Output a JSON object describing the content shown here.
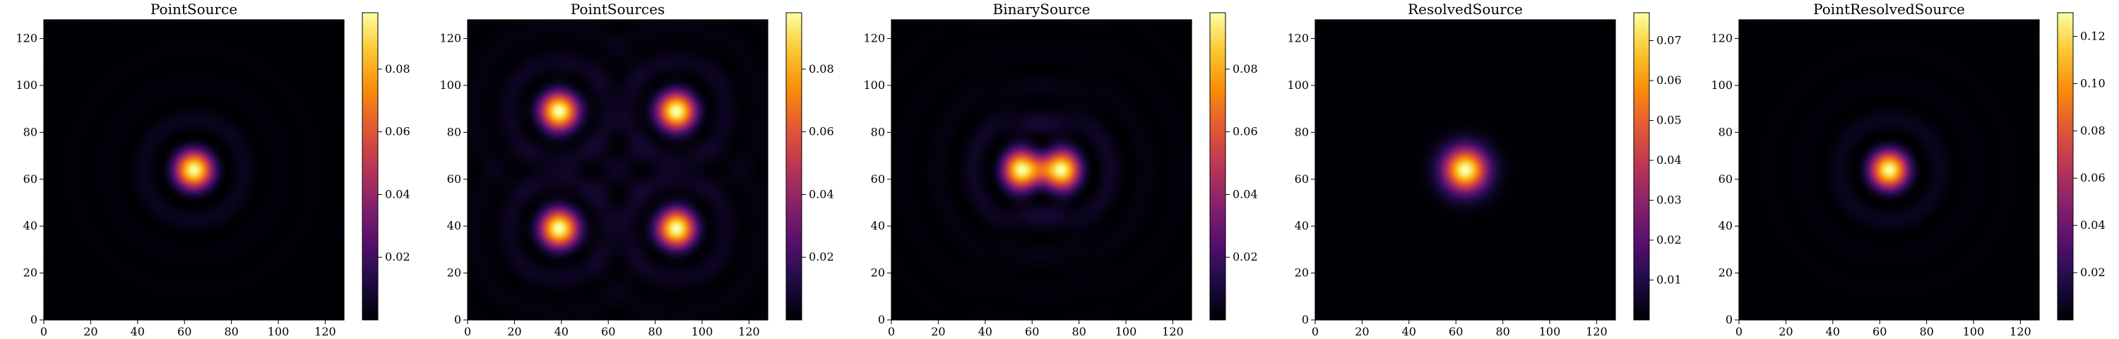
{
  "chart_data": [
    {
      "type": "heatmap",
      "title": "PointSource",
      "colormap": "inferno",
      "x_range": [
        0,
        128
      ],
      "y_range": [
        0,
        128
      ],
      "x_ticks": [
        "0",
        "20",
        "40",
        "60",
        "80",
        "100",
        "120"
      ],
      "y_ticks": [
        "0",
        "20",
        "40",
        "60",
        "80",
        "100",
        "120"
      ],
      "colorbar_range": [
        0,
        0.098
      ],
      "colorbar_ticks": [
        "0.02",
        "0.04",
        "0.06",
        "0.08"
      ],
      "sources": [
        {
          "x": 64,
          "y": 64,
          "amplitude": 1.0
        }
      ],
      "profile": "airy",
      "peak": 0.098
    },
    {
      "type": "heatmap",
      "title": "PointSources",
      "colormap": "inferno",
      "x_range": [
        0,
        128
      ],
      "y_range": [
        0,
        128
      ],
      "x_ticks": [
        "0",
        "20",
        "40",
        "60",
        "80",
        "100",
        "120"
      ],
      "y_ticks": [
        "0",
        "20",
        "40",
        "60",
        "80",
        "100",
        "120"
      ],
      "colorbar_range": [
        0,
        0.098
      ],
      "colorbar_ticks": [
        "0.02",
        "0.04",
        "0.06",
        "0.08"
      ],
      "sources": [
        {
          "x": 39,
          "y": 89,
          "amplitude": 1.0
        },
        {
          "x": 89,
          "y": 89,
          "amplitude": 1.0
        },
        {
          "x": 39,
          "y": 39,
          "amplitude": 1.0
        },
        {
          "x": 89,
          "y": 39,
          "amplitude": 1.0
        }
      ],
      "profile": "airy",
      "peak": 0.098
    },
    {
      "type": "heatmap",
      "title": "BinarySource",
      "colormap": "inferno",
      "x_range": [
        0,
        128
      ],
      "y_range": [
        0,
        128
      ],
      "x_ticks": [
        "0",
        "20",
        "40",
        "60",
        "80",
        "100",
        "120"
      ],
      "y_ticks": [
        "0",
        "20",
        "40",
        "60",
        "80",
        "100",
        "120"
      ],
      "colorbar_range": [
        0,
        0.098
      ],
      "colorbar_ticks": [
        "0.02",
        "0.04",
        "0.06",
        "0.08"
      ],
      "sources": [
        {
          "x": 56,
          "y": 64,
          "amplitude": 1.0
        },
        {
          "x": 72,
          "y": 64,
          "amplitude": 1.0
        }
      ],
      "profile": "airy",
      "peak": 0.098
    },
    {
      "type": "heatmap",
      "title": "ResolvedSource",
      "colormap": "inferno",
      "x_range": [
        0,
        128
      ],
      "y_range": [
        0,
        128
      ],
      "x_ticks": [
        "0",
        "20",
        "40",
        "60",
        "80",
        "100",
        "120"
      ],
      "y_ticks": [
        "0",
        "20",
        "40",
        "60",
        "80",
        "100",
        "120"
      ],
      "colorbar_range": [
        0,
        0.077
      ],
      "colorbar_ticks": [
        "0.01",
        "0.02",
        "0.03",
        "0.04",
        "0.05",
        "0.06",
        "0.07"
      ],
      "sources": [
        {
          "x": 64,
          "y": 64,
          "amplitude": 1.0
        }
      ],
      "profile": "blurred",
      "peak": 0.077
    },
    {
      "type": "heatmap",
      "title": "PointResolvedSource",
      "colormap": "inferno",
      "x_range": [
        0,
        128
      ],
      "y_range": [
        0,
        128
      ],
      "x_ticks": [
        "0",
        "20",
        "40",
        "60",
        "80",
        "100",
        "120"
      ],
      "y_ticks": [
        "0",
        "20",
        "40",
        "60",
        "80",
        "100",
        "120"
      ],
      "colorbar_range": [
        0,
        0.13
      ],
      "colorbar_ticks": [
        "0.02",
        "0.04",
        "0.06",
        "0.08",
        "0.10",
        "0.12"
      ],
      "sources": [
        {
          "x": 64,
          "y": 64,
          "amplitude": 1.0
        }
      ],
      "profile": "airy",
      "peak": 0.13
    }
  ]
}
